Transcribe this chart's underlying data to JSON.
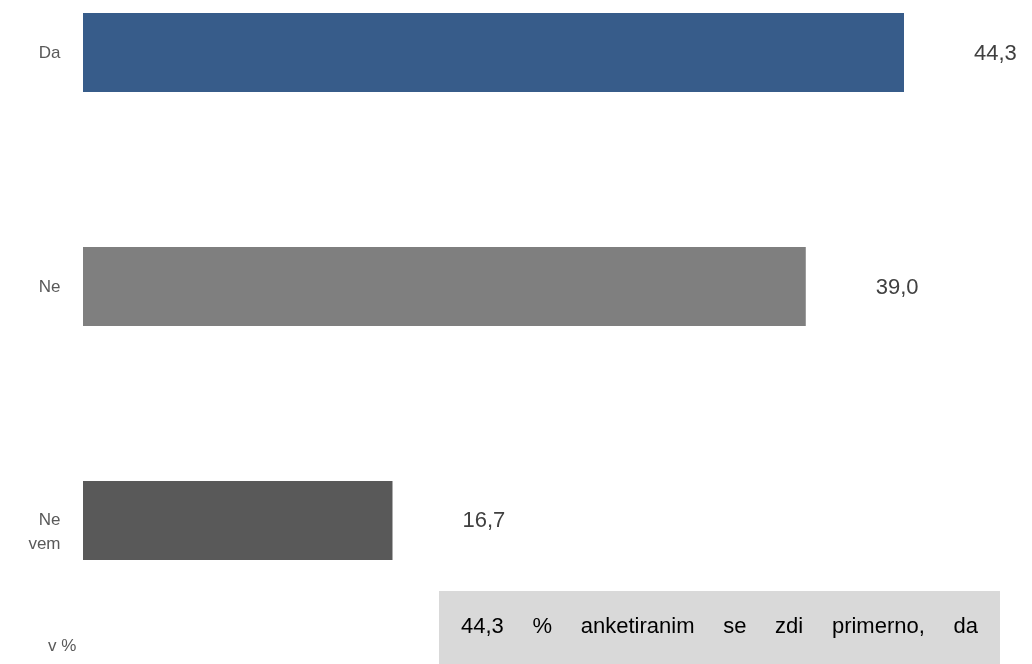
{
  "chart_data": {
    "type": "bar",
    "orientation": "horizontal",
    "categories": [
      "Da",
      "Ne",
      "Ne vem"
    ],
    "values": [
      44.3,
      39.0,
      16.7
    ],
    "colors": [
      "#375c8a",
      "#7f7f7f",
      "#595959"
    ],
    "value_labels": [
      "44,3",
      "39,0",
      "16,7"
    ],
    "annotations": [
      "v %",
      "44,3 % anketiranim se zdi primerno, da"
    ]
  }
}
